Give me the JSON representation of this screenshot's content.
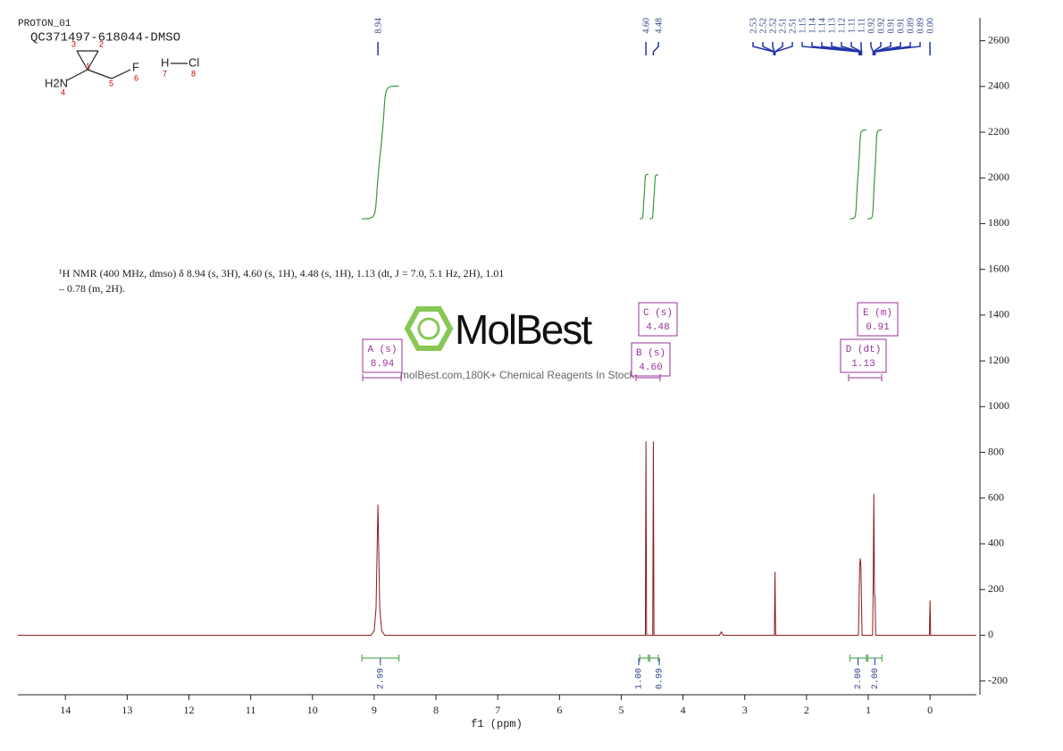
{
  "chart_data": {
    "type": "line",
    "x_label": "f1 (ppm)",
    "xlim": [
      14.77,
      -0.75
    ],
    "xticks": [
      14,
      13,
      12,
      11,
      10,
      9,
      8,
      7,
      6,
      5,
      4,
      3,
      2,
      1,
      0
    ],
    "ylim": [
      -260,
      2700
    ],
    "yticks": [
      -200,
      0,
      200,
      400,
      600,
      800,
      1000,
      1200,
      1400,
      1600,
      1800,
      2000,
      2200,
      2400,
      2600
    ],
    "series": [
      {
        "color": "#8b1a1a",
        "x": [
          14.77,
          9.05,
          9.0,
          8.97,
          8.94,
          8.91,
          8.88,
          8.83,
          4.61,
          4.6,
          4.59,
          4.49,
          4.48,
          4.47,
          3.41,
          3.38,
          3.35,
          2.52,
          2.51,
          2.5,
          1.16,
          1.15,
          1.14,
          1.13,
          1.12,
          1.11,
          1.1,
          0.93,
          0.92,
          0.91,
          0.9,
          0.89,
          0.88,
          0.01,
          0.0,
          -0.01,
          -0.75
        ],
        "values": [
          0,
          0,
          20,
          120,
          571,
          120,
          20,
          0,
          0,
          848,
          0,
          0,
          848,
          0,
          0,
          15,
          0,
          0,
          278,
          0,
          0,
          130,
          300,
          336,
          310,
          150,
          0,
          0,
          240,
          618,
          180,
          170,
          0,
          0,
          152,
          0,
          0
        ]
      }
    ],
    "peak_labels": [
      "8.94",
      "4.60",
      "4.48",
      "2.53",
      "2.52",
      "2.52",
      "2.51",
      "2.51",
      "1.15",
      "1.14",
      "1.14",
      "1.13",
      "1.12",
      "1.11",
      "1.11",
      "0.92",
      "0.92",
      "0.91",
      "0.91",
      "0.89",
      "0.89",
      "0.00"
    ],
    "integrals": {
      "color": "#3a9a3a",
      "ranges": [
        [
          9.2,
          8.6
        ],
        [
          4.7,
          4.56
        ],
        [
          4.54,
          4.4
        ],
        [
          1.3,
          1.03
        ],
        [
          1.01,
          0.78
        ]
      ],
      "values": [
        2.99,
        1,
        0.99,
        2,
        2
      ],
      "value_labels": [
        "2.99",
        "1.00",
        "0.99",
        "2.00",
        "2.00"
      ]
    },
    "multiplets": [
      {
        "name": "A (s)",
        "shift": "8.94"
      },
      {
        "name": "B (s)",
        "shift": "4.60"
      },
      {
        "name": "C (s)",
        "shift": "4.48"
      },
      {
        "name": "D (dt)",
        "shift": "1.13"
      },
      {
        "name": "E (m)",
        "shift": "0.91"
      }
    ],
    "annotation": [
      "¹H NMR (400 MHz, dmso) δ 8.94 (s, 3H), 4.60 (s, 1H), 4.48 (s, 1H), 1.13 (dt, J = 7.0, 5.1 Hz, 2H), 1.01",
      "– 0.78 (m, 2H)."
    ]
  },
  "header": {
    "experiment": "PROTON_01",
    "sample": "QC371497-618044-DMSO"
  },
  "structure": {
    "atoms": [
      "H2N",
      "F",
      "H",
      "Cl"
    ],
    "numbers": [
      "1",
      "2",
      "3",
      "4",
      "5",
      "6",
      "7",
      "8"
    ]
  },
  "watermark": {
    "brand": "MolBest",
    "tagline": "molBest.com,180K+ Chemical Reagents In Stock"
  }
}
